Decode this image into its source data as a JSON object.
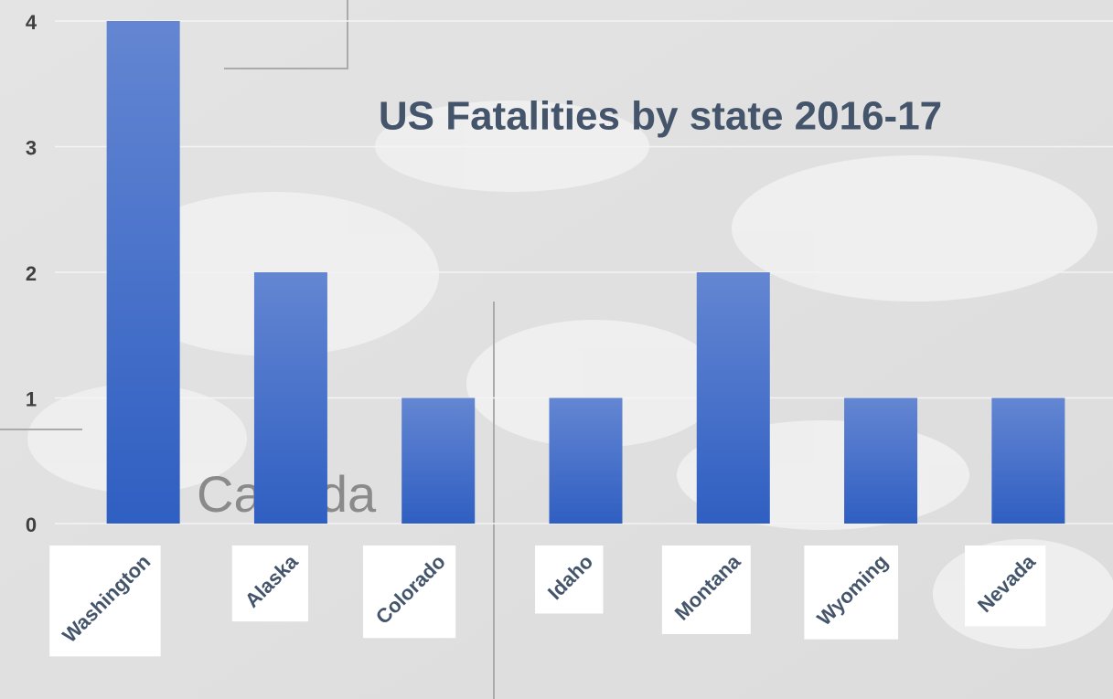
{
  "chart_data": {
    "type": "bar",
    "title": "US Fatalities by state 2016-17",
    "background_label": "Canada",
    "categories": [
      "Washington",
      "Alaska",
      "Colorado",
      "Idaho",
      "Montana",
      "Wyoming",
      "Nevada"
    ],
    "values": [
      4,
      2,
      1,
      1,
      2,
      1,
      1
    ],
    "color": "#3a66c6",
    "ylim": [
      0,
      4
    ],
    "yticks": [
      0,
      1,
      2,
      3,
      4
    ],
    "grid": true
  }
}
